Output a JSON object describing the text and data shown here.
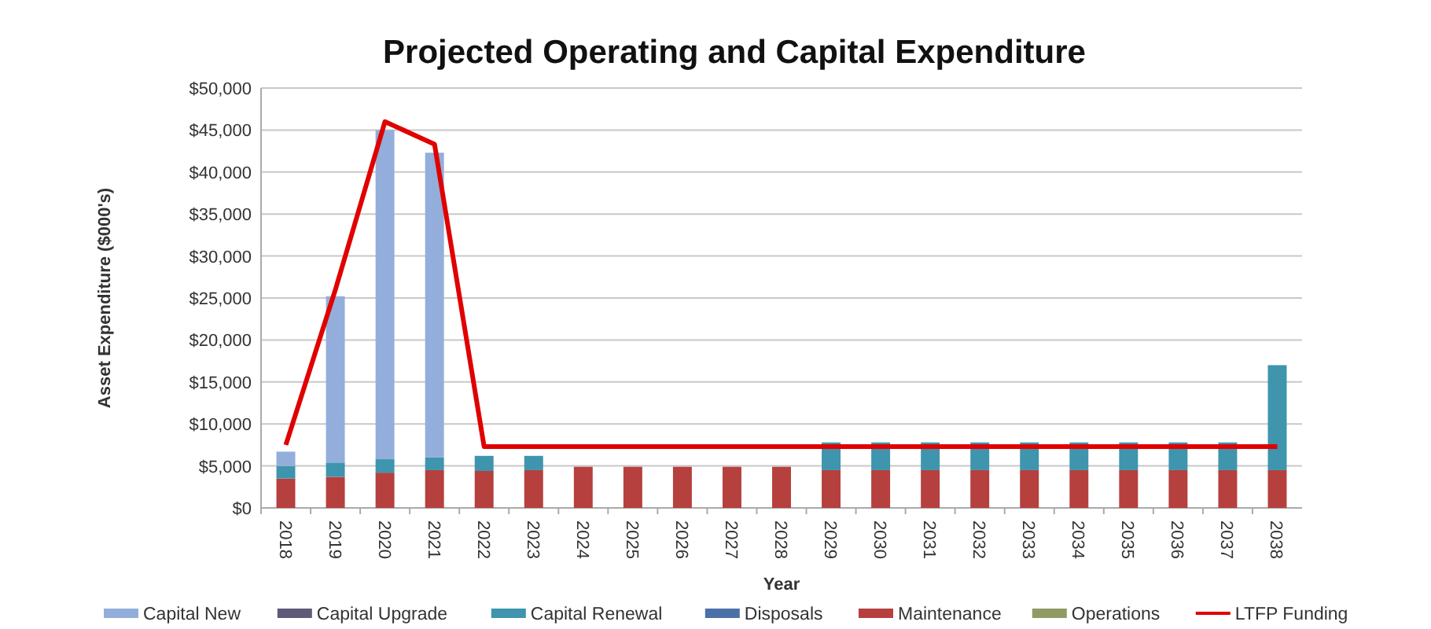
{
  "chart_data": {
    "type": "bar",
    "title": "Projected Operating and Capital Expenditure",
    "xlabel": "Year",
    "ylabel": "Asset Expenditure ($000's)",
    "categories": [
      "2018",
      "2019",
      "2020",
      "2021",
      "2022",
      "2023",
      "2024",
      "2025",
      "2026",
      "2027",
      "2028",
      "2029",
      "2030",
      "2031",
      "2032",
      "2033",
      "2034",
      "2035",
      "2036",
      "2037",
      "2038"
    ],
    "stacked": true,
    "series": [
      {
        "name": "Operations",
        "color": "#8f9b63",
        "values": [
          0,
          0,
          0,
          0,
          0,
          0,
          0,
          0,
          0,
          0,
          0,
          0,
          0,
          0,
          0,
          0,
          0,
          0,
          0,
          0,
          0
        ]
      },
      {
        "name": "Maintenance",
        "color": "#b5403e",
        "values": [
          3500,
          3700,
          4200,
          4500,
          4400,
          4500,
          4900,
          4900,
          4900,
          4900,
          4900,
          4500,
          4500,
          4500,
          4500,
          4500,
          4500,
          4500,
          4500,
          4500,
          4500
        ]
      },
      {
        "name": "Disposals",
        "color": "#4a72a8",
        "values": [
          0,
          0,
          0,
          0,
          0,
          0,
          0,
          0,
          0,
          0,
          0,
          0,
          0,
          0,
          0,
          0,
          0,
          0,
          0,
          0,
          0
        ]
      },
      {
        "name": "Capital Renewal",
        "color": "#3e95ad",
        "values": [
          1500,
          1700,
          1600,
          1500,
          1800,
          1700,
          0,
          0,
          0,
          0,
          0,
          3300,
          3300,
          3300,
          3300,
          3300,
          3300,
          3300,
          3300,
          3300,
          12500
        ]
      },
      {
        "name": "Capital Upgrade",
        "color": "#5e5a78",
        "values": [
          0,
          0,
          0,
          0,
          0,
          0,
          0,
          0,
          0,
          0,
          0,
          0,
          0,
          0,
          0,
          0,
          0,
          0,
          0,
          0,
          0
        ]
      },
      {
        "name": "Capital New",
        "color": "#93aedb",
        "values": [
          1700,
          19800,
          39200,
          36300,
          0,
          0,
          0,
          0,
          0,
          0,
          0,
          0,
          0,
          0,
          0,
          0,
          0,
          0,
          0,
          0,
          0
        ]
      },
      {
        "name": "LTFP Funding",
        "type": "line",
        "color": "#e00000",
        "values": [
          7500,
          26000,
          46000,
          43300,
          7300,
          7300,
          7300,
          7300,
          7300,
          7300,
          7300,
          7300,
          7300,
          7300,
          7300,
          7300,
          7300,
          7300,
          7300,
          7300,
          7300
        ]
      }
    ],
    "ylim": [
      0,
      50000
    ],
    "yticks": [
      {
        "value": 0,
        "label": "$0"
      },
      {
        "value": 5000,
        "label": "$5,000"
      },
      {
        "value": 10000,
        "label": "$10,000"
      },
      {
        "value": 15000,
        "label": "$15,000"
      },
      {
        "value": 20000,
        "label": "$20,000"
      },
      {
        "value": 25000,
        "label": "$25,000"
      },
      {
        "value": 30000,
        "label": "$30,000"
      },
      {
        "value": 35000,
        "label": "$35,000"
      },
      {
        "value": 40000,
        "label": "$40,000"
      },
      {
        "value": 45000,
        "label": "$45,000"
      },
      {
        "value": 50000,
        "label": "$50,000"
      }
    ],
    "grid": "y",
    "legend": "bottom",
    "marker": "none"
  }
}
